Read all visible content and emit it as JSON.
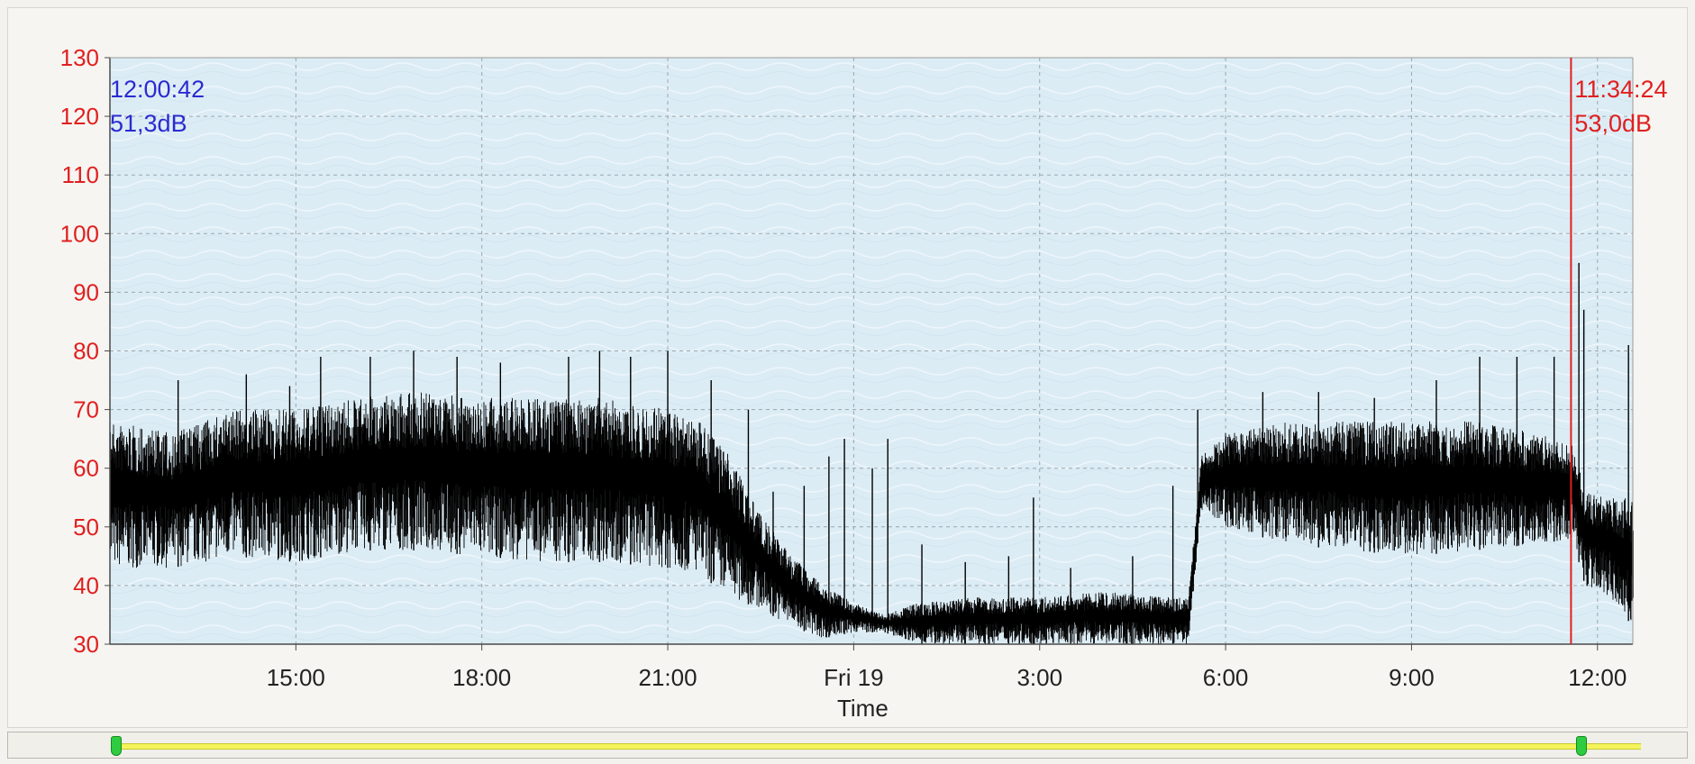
{
  "chart_data": {
    "type": "line",
    "title": "",
    "xlabel": "Time",
    "ylabel": "",
    "ylim": [
      30,
      130
    ],
    "y_ticks": [
      "30",
      "40",
      "50",
      "60",
      "70",
      "80",
      "90",
      "100",
      "110",
      "120",
      "130"
    ],
    "x_range_hours": [
      12.0,
      36.57
    ],
    "x_ticks": [
      {
        "label": "15:00",
        "hour": 15
      },
      {
        "label": "18:00",
        "hour": 18
      },
      {
        "label": "21:00",
        "hour": 21
      },
      {
        "label": "Fri 19",
        "hour": 24
      },
      {
        "label": "3:00",
        "hour": 27
      },
      {
        "label": "6:00",
        "hour": 30
      },
      {
        "label": "9:00",
        "hour": 33
      },
      {
        "label": "12:00",
        "hour": 36
      }
    ],
    "grid": true,
    "series": [
      {
        "color": "#000000",
        "envelope": [
          {
            "hour": 12.0,
            "low": 43,
            "high": 68
          },
          {
            "hour": 13.0,
            "low": 43,
            "high": 66
          },
          {
            "hour": 14.0,
            "low": 45,
            "high": 70
          },
          {
            "hour": 15.0,
            "low": 44,
            "high": 70
          },
          {
            "hour": 16.0,
            "low": 46,
            "high": 72
          },
          {
            "hour": 17.0,
            "low": 46,
            "high": 73
          },
          {
            "hour": 18.0,
            "low": 45,
            "high": 72
          },
          {
            "hour": 19.0,
            "low": 44,
            "high": 72
          },
          {
            "hour": 20.0,
            "low": 44,
            "high": 72
          },
          {
            "hour": 21.0,
            "low": 43,
            "high": 70
          },
          {
            "hour": 21.5,
            "low": 42,
            "high": 68
          },
          {
            "hour": 22.0,
            "low": 38,
            "high": 62
          },
          {
            "hour": 22.5,
            "low": 36,
            "high": 52
          },
          {
            "hour": 23.0,
            "low": 33,
            "high": 45
          },
          {
            "hour": 23.5,
            "low": 31,
            "high": 40
          },
          {
            "hour": 24.0,
            "low": 32,
            "high": 37
          },
          {
            "hour": 24.5,
            "low": 32,
            "high": 35
          },
          {
            "hour": 25.0,
            "low": 30,
            "high": 37
          },
          {
            "hour": 26.0,
            "low": 30,
            "high": 38
          },
          {
            "hour": 27.0,
            "low": 30,
            "high": 38
          },
          {
            "hour": 28.0,
            "low": 30,
            "high": 39
          },
          {
            "hour": 29.0,
            "low": 30,
            "high": 38
          },
          {
            "hour": 29.4,
            "low": 30,
            "high": 38
          },
          {
            "hour": 29.6,
            "low": 53,
            "high": 62
          },
          {
            "hour": 30.0,
            "low": 50,
            "high": 66
          },
          {
            "hour": 31.0,
            "low": 47,
            "high": 68
          },
          {
            "hour": 32.0,
            "low": 46,
            "high": 68
          },
          {
            "hour": 33.0,
            "low": 45,
            "high": 68
          },
          {
            "hour": 34.0,
            "low": 46,
            "high": 68
          },
          {
            "hour": 35.0,
            "low": 47,
            "high": 66
          },
          {
            "hour": 35.6,
            "low": 48,
            "high": 64
          },
          {
            "hour": 35.8,
            "low": 40,
            "high": 56
          },
          {
            "hour": 36.2,
            "low": 38,
            "high": 55
          },
          {
            "hour": 36.57,
            "low": 33,
            "high": 55
          }
        ],
        "spikes": [
          {
            "hour": 13.1,
            "value": 75
          },
          {
            "hour": 14.2,
            "value": 76
          },
          {
            "hour": 14.9,
            "value": 74
          },
          {
            "hour": 15.4,
            "value": 79
          },
          {
            "hour": 16.2,
            "value": 79
          },
          {
            "hour": 16.9,
            "value": 80
          },
          {
            "hour": 17.6,
            "value": 79
          },
          {
            "hour": 18.3,
            "value": 78
          },
          {
            "hour": 19.4,
            "value": 79
          },
          {
            "hour": 19.9,
            "value": 80
          },
          {
            "hour": 20.4,
            "value": 79
          },
          {
            "hour": 21.0,
            "value": 80
          },
          {
            "hour": 21.7,
            "value": 75
          },
          {
            "hour": 22.3,
            "value": 70
          },
          {
            "hour": 22.7,
            "value": 56
          },
          {
            "hour": 23.2,
            "value": 57
          },
          {
            "hour": 23.6,
            "value": 62
          },
          {
            "hour": 23.85,
            "value": 65
          },
          {
            "hour": 24.3,
            "value": 60
          },
          {
            "hour": 24.55,
            "value": 65
          },
          {
            "hour": 25.1,
            "value": 47
          },
          {
            "hour": 25.8,
            "value": 44
          },
          {
            "hour": 26.5,
            "value": 45
          },
          {
            "hour": 26.9,
            "value": 55
          },
          {
            "hour": 27.5,
            "value": 43
          },
          {
            "hour": 28.5,
            "value": 45
          },
          {
            "hour": 29.15,
            "value": 57
          },
          {
            "hour": 29.55,
            "value": 70
          },
          {
            "hour": 30.6,
            "value": 73
          },
          {
            "hour": 31.5,
            "value": 73
          },
          {
            "hour": 32.4,
            "value": 72
          },
          {
            "hour": 33.4,
            "value": 75
          },
          {
            "hour": 34.1,
            "value": 79
          },
          {
            "hour": 34.7,
            "value": 79
          },
          {
            "hour": 35.3,
            "value": 79
          },
          {
            "hour": 35.7,
            "value": 95
          },
          {
            "hour": 35.78,
            "value": 87
          },
          {
            "hour": 36.5,
            "value": 81
          }
        ]
      }
    ]
  },
  "cursors": {
    "left": {
      "time": "12:00:42",
      "value": "51,3dB",
      "color": "#2b2bd0"
    },
    "right": {
      "time": "11:34:24",
      "value": "53,0dB",
      "color": "#e02020",
      "hour": 35.573
    }
  },
  "colors": {
    "plot_background": "#dcecf5",
    "axis_text": "#e02020",
    "grid": "#9aa7ad",
    "trace": "#000000",
    "range_bar": "#f4f45a",
    "handle": "#2ecc40"
  },
  "scrollbar": {
    "range_start_fraction": 0.0,
    "range_end_fraction": 1.0
  }
}
